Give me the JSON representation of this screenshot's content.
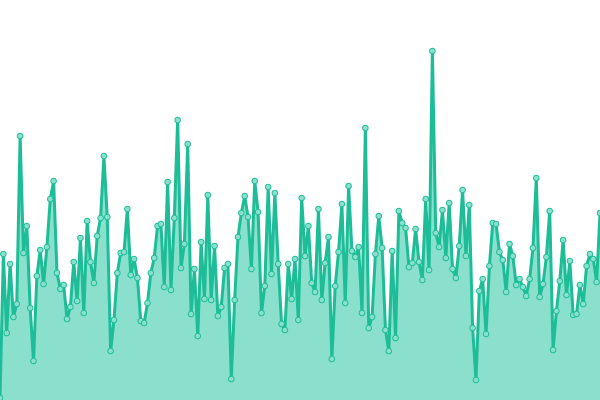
{
  "chart_data": {
    "type": "area",
    "title": "",
    "xlabel": "",
    "ylabel": "",
    "ylim": [
      0,
      400
    ],
    "grid": false,
    "legend": "none",
    "markers": true,
    "colors": {
      "line": "#1dbd97",
      "fill": "#8ae0cd",
      "marker_fill": "#8ae0cd",
      "background": "#ffffff"
    },
    "values": [
      2,
      146,
      67,
      136,
      83,
      96,
      264,
      147,
      174,
      92,
      39,
      124,
      150,
      116,
      153,
      201,
      219,
      127,
      111,
      115,
      81,
      93,
      138,
      99,
      162,
      87,
      179,
      138,
      117,
      164,
      182,
      244,
      183,
      49,
      80,
      127,
      147,
      148,
      191,
      125,
      141,
      122,
      79,
      77,
      97,
      127,
      142,
      174,
      176,
      113,
      218,
      110,
      182,
      280,
      132,
      156,
      256,
      86,
      131,
      64,
      158,
      101,
      205,
      100,
      154,
      84,
      93,
      132,
      136,
      21,
      100,
      163,
      187,
      204,
      183,
      131,
      219,
      188,
      87,
      114,
      213,
      126,
      207,
      136,
      76,
      70,
      136,
      101,
      141,
      80,
      202,
      144,
      174,
      117,
      108,
      191,
      100,
      137,
      163,
      41,
      114,
      148,
      196,
      97,
      214,
      149,
      143,
      153,
      87,
      272,
      72,
      83,
      146,
      184,
      152,
      70,
      49,
      149,
      62,
      189,
      177,
      172,
      133,
      137,
      171,
      138,
      120,
      201,
      130,
      349,
      167,
      153,
      190,
      142,
      197,
      131,
      122,
      154,
      210,
      144,
      195,
      72,
      20,
      109,
      121,
      66,
      134,
      177,
      176,
      148,
      140,
      108,
      156,
      144,
      115,
      121,
      113,
      104,
      121,
      152,
      222,
      103,
      116,
      143,
      189,
      50,
      89,
      119,
      160,
      105,
      139,
      85,
      86,
      115,
      96,
      134,
      146,
      141,
      118,
      187
    ]
  }
}
